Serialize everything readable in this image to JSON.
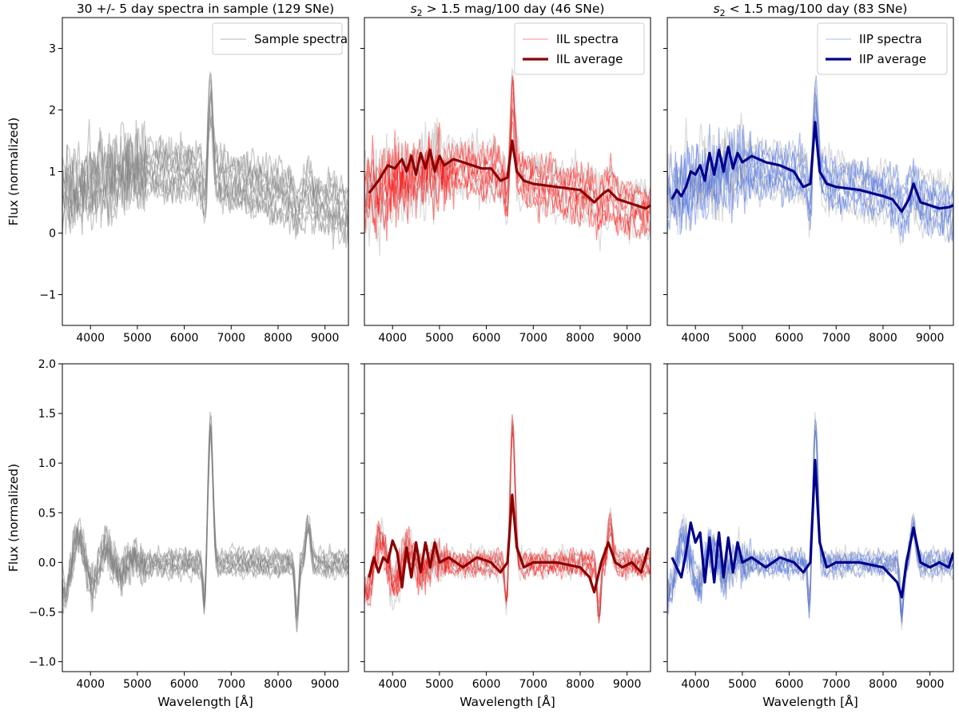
{
  "colors": {
    "sample_gray": "#808080",
    "light_gray": "#c8c8c8",
    "iil_spectra": "#ff0000",
    "iil_light": "#ffb3b3",
    "iil_average": "#8b0000",
    "iip_spectra": "#4169e1",
    "iip_light": "#c6d3f5",
    "iip_average": "#00008b"
  },
  "chart_data": [
    {
      "id": "top-left",
      "type": "line",
      "title": "30 +/- 5 day spectra in sample (129 SNe)",
      "xlabel": "",
      "ylabel": "Flux (normalized)",
      "xlim": [
        3400,
        9500
      ],
      "ylim": [
        -1.5,
        3.5
      ],
      "xticks": [
        4000,
        5000,
        6000,
        7000,
        8000,
        9000
      ],
      "yticks": [
        -1,
        0,
        1,
        2,
        3
      ],
      "legend": {
        "position": "top-right",
        "entries": [
          {
            "label": "Sample spectra",
            "style": "spectra",
            "color": "#cfcfcf"
          }
        ]
      },
      "band": {
        "color": "#808080",
        "kind": "raw"
      },
      "series": []
    },
    {
      "id": "top-middle",
      "type": "line",
      "title_math": {
        "sub": "2",
        "rest": " > 1.5 mag/100 day (46 SNe)"
      },
      "xlabel": "",
      "ylabel": "",
      "xlim": [
        3400,
        9500
      ],
      "ylim": [
        -1.5,
        3.5
      ],
      "xticks": [
        4000,
        5000,
        6000,
        7000,
        8000,
        9000
      ],
      "yticks": [
        -1,
        0,
        1,
        2,
        3
      ],
      "legend": {
        "position": "top-right",
        "entries": [
          {
            "label": "IIL spectra",
            "style": "spectra",
            "color": "#ffb3b3"
          },
          {
            "label": "IIL average",
            "style": "average",
            "color": "#8b0000"
          }
        ]
      },
      "band": {
        "color": "#ff0000",
        "kind": "raw"
      },
      "series": [
        {
          "name": "IIL average",
          "color": "#8b0000",
          "x": [
            3500,
            3700,
            3900,
            4050,
            4200,
            4300,
            4400,
            4500,
            4600,
            4700,
            4800,
            4900,
            5000,
            5100,
            5300,
            5500,
            5700,
            5900,
            6100,
            6300,
            6450,
            6550,
            6650,
            6800,
            7000,
            7500,
            8000,
            8300,
            8500,
            8600,
            8800,
            9000,
            9200,
            9400,
            9500
          ],
          "y": [
            0.65,
            0.85,
            1.1,
            1.05,
            1.2,
            1.0,
            1.25,
            0.95,
            1.3,
            1.05,
            1.35,
            1.0,
            1.25,
            1.1,
            1.2,
            1.15,
            1.1,
            1.05,
            1.05,
            0.85,
            0.9,
            1.5,
            1.0,
            0.85,
            0.8,
            0.75,
            0.7,
            0.5,
            0.65,
            0.7,
            0.55,
            0.5,
            0.45,
            0.4,
            0.45
          ]
        }
      ]
    },
    {
      "id": "top-right",
      "type": "line",
      "title_math": {
        "sub": "2",
        "rest": " < 1.5 mag/100 day (83 SNe)"
      },
      "xlabel": "",
      "ylabel": "",
      "xlim": [
        3400,
        9500
      ],
      "ylim": [
        -1.5,
        3.5
      ],
      "xticks": [
        4000,
        5000,
        6000,
        7000,
        8000,
        9000
      ],
      "yticks": [
        -1,
        0,
        1,
        2,
        3
      ],
      "legend": {
        "position": "top-right",
        "entries": [
          {
            "label": "IIP spectra",
            "style": "spectra",
            "color": "#c6d3f5"
          },
          {
            "label": "IIP average",
            "style": "average",
            "color": "#00008b"
          }
        ]
      },
      "band": {
        "color": "#4169e1",
        "kind": "raw"
      },
      "series": [
        {
          "name": "IIP average",
          "color": "#00008b",
          "x": [
            3500,
            3600,
            3700,
            3800,
            3900,
            4000,
            4100,
            4200,
            4300,
            4400,
            4500,
            4600,
            4700,
            4800,
            4900,
            5000,
            5200,
            5500,
            5800,
            6100,
            6300,
            6450,
            6550,
            6650,
            6800,
            7000,
            7500,
            8000,
            8200,
            8400,
            8550,
            8650,
            8800,
            9000,
            9200,
            9400,
            9500
          ],
          "y": [
            0.55,
            0.7,
            0.6,
            0.75,
            1.0,
            0.95,
            1.1,
            0.85,
            1.3,
            0.95,
            1.35,
            1.0,
            1.4,
            1.05,
            1.3,
            1.15,
            1.25,
            1.15,
            1.1,
            1.0,
            0.75,
            0.8,
            1.8,
            1.0,
            0.8,
            0.75,
            0.7,
            0.6,
            0.55,
            0.35,
            0.55,
            0.8,
            0.5,
            0.45,
            0.4,
            0.42,
            0.45
          ]
        }
      ]
    },
    {
      "id": "bottom-left",
      "type": "line",
      "xlabel": "Wavelength [Å]",
      "ylabel": "Flux (normalized)",
      "xlim": [
        3400,
        9500
      ],
      "ylim": [
        -1.1,
        2.0
      ],
      "xticks": [
        4000,
        5000,
        6000,
        7000,
        8000,
        9000
      ],
      "yticks": [
        -1.0,
        -0.5,
        0.0,
        0.5,
        1.0,
        1.5,
        2.0
      ],
      "band": {
        "color": "#808080",
        "kind": "residual"
      },
      "series": []
    },
    {
      "id": "bottom-middle",
      "type": "line",
      "xlabel": "Wavelength [Å]",
      "ylabel": "",
      "xlim": [
        3400,
        9500
      ],
      "ylim": [
        -1.1,
        2.0
      ],
      "xticks": [
        4000,
        5000,
        6000,
        7000,
        8000,
        9000
      ],
      "yticks": [
        -1.0,
        -0.5,
        0.0,
        0.5,
        1.0,
        1.5,
        2.0
      ],
      "band": {
        "color": "#ff0000",
        "kind": "residual"
      },
      "series": [
        {
          "name": "IIL average",
          "color": "#8b0000",
          "x": [
            3500,
            3600,
            3700,
            3800,
            3900,
            4000,
            4100,
            4200,
            4300,
            4400,
            4500,
            4600,
            4700,
            4800,
            4900,
            5000,
            5200,
            5500,
            5800,
            6100,
            6300,
            6450,
            6550,
            6650,
            6800,
            7000,
            7500,
            8000,
            8200,
            8300,
            8450,
            8600,
            8750,
            8900,
            9100,
            9300,
            9450
          ],
          "y": [
            -0.15,
            0.05,
            -0.1,
            0.05,
            0.0,
            0.22,
            0.1,
            -0.25,
            0.15,
            -0.15,
            0.2,
            -0.1,
            0.2,
            -0.05,
            0.2,
            0.0,
            0.05,
            -0.05,
            0.05,
            0.0,
            -0.1,
            0.0,
            0.68,
            0.15,
            -0.05,
            0.0,
            0.0,
            -0.05,
            -0.15,
            -0.3,
            0.0,
            0.2,
            0.0,
            -0.05,
            0.0,
            -0.1,
            0.15
          ]
        }
      ]
    },
    {
      "id": "bottom-right",
      "type": "line",
      "xlabel": "Wavelength [Å]",
      "ylabel": "",
      "xlim": [
        3400,
        9500
      ],
      "ylim": [
        -1.1,
        2.0
      ],
      "xticks": [
        4000,
        5000,
        6000,
        7000,
        8000,
        9000
      ],
      "yticks": [
        -1.0,
        -0.5,
        0.0,
        0.5,
        1.0,
        1.5,
        2.0
      ],
      "band": {
        "color": "#4169e1",
        "kind": "residual"
      },
      "series": [
        {
          "name": "IIP average",
          "color": "#00008b",
          "x": [
            3500,
            3600,
            3700,
            3800,
            3900,
            4000,
            4100,
            4200,
            4300,
            4400,
            4500,
            4600,
            4700,
            4800,
            4900,
            5000,
            5200,
            5500,
            5800,
            6100,
            6300,
            6450,
            6550,
            6650,
            6800,
            7000,
            7500,
            8000,
            8200,
            8300,
            8400,
            8500,
            8650,
            8800,
            9000,
            9200,
            9400,
            9500
          ],
          "y": [
            0.05,
            -0.05,
            -0.15,
            0.1,
            0.4,
            0.2,
            0.3,
            -0.2,
            0.25,
            -0.2,
            0.3,
            -0.15,
            0.25,
            -0.1,
            0.2,
            0.0,
            0.05,
            -0.05,
            0.05,
            0.0,
            -0.1,
            0.0,
            1.03,
            0.2,
            -0.05,
            0.0,
            0.0,
            -0.05,
            -0.15,
            -0.2,
            -0.35,
            0.0,
            0.35,
            0.0,
            -0.05,
            0.0,
            -0.05,
            0.1
          ]
        }
      ]
    }
  ]
}
